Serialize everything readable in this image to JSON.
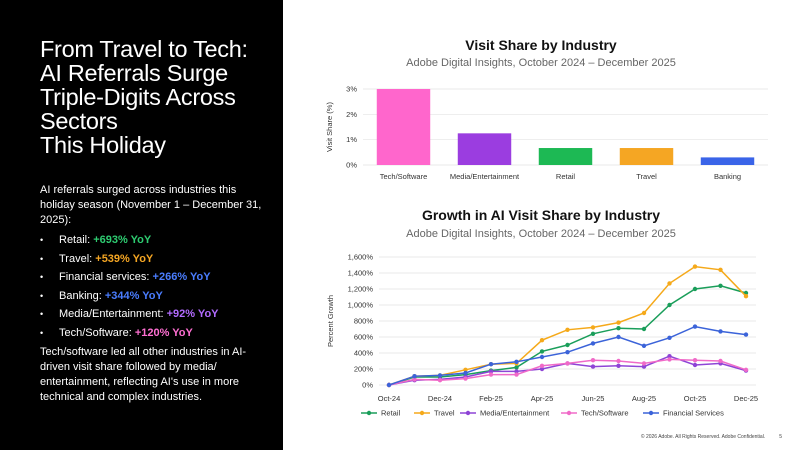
{
  "left": {
    "title_lines": [
      "From Travel to Tech:",
      "AI Referrals Surge",
      "Triple-Digits Across",
      "Sectors",
      "This Holiday"
    ],
    "intro": "AI referrals surged across industries this holiday season (November 1 – December 31, 2025):",
    "bullets": [
      {
        "label": "Retail:",
        "value": "+693% YoY",
        "color": "#2ecc71"
      },
      {
        "label": "Travel: ",
        "value": "+539% YoY",
        "color": "#f5a623"
      },
      {
        "label": "Financial services:",
        "value": "+266% YoY",
        "color": "#4a7dff"
      },
      {
        "label": "Banking:",
        "value": "+344% YoY",
        "color": "#4a7dff"
      },
      {
        "label": "Media/Entertainment:",
        "value": "+92% YoY",
        "color": "#b26bff"
      },
      {
        "label": "Tech/Software:",
        "value": "+120% YoY",
        "color": "#ff6fd2"
      }
    ],
    "closing": "Tech/software led all other industries in AI-driven visit share followed by media/ entertainment, reflecting AI's use in more technical and complex industries."
  },
  "footer": {
    "text": "© 2026 Adobe. All Rights Reserved. Adobe Confidential.",
    "page": "5"
  },
  "chart_data": [
    {
      "type": "bar",
      "title": "Visit Share by Industry",
      "subtitle": "Adobe Digital Insights, October 2024 – December 2025",
      "ylabel": "Visit Share (%)",
      "xlabel": "",
      "categories": [
        "Tech/Software",
        "Media/Entertainment",
        "Retail",
        "Travel",
        "Banking"
      ],
      "values": [
        3.0,
        1.25,
        0.67,
        0.67,
        0.3
      ],
      "colors": [
        "#ff66cc",
        "#9b3de0",
        "#1db954",
        "#f5a623",
        "#3a64e8"
      ],
      "ylim": [
        0,
        3
      ],
      "yticks": [
        0,
        1,
        2,
        3
      ],
      "ytick_labels": [
        "0%",
        "1%",
        "2%",
        "3%"
      ],
      "grid": "horizontal"
    },
    {
      "type": "line",
      "title": "Growth in AI Visit Share by Industry",
      "subtitle": "Adobe Digital Insights, October 2024 – December 2025",
      "ylabel": "Percent Growth",
      "xlabel": "",
      "x": [
        "Oct-24",
        "Nov-24",
        "Dec-24",
        "Jan-25",
        "Feb-25",
        "Mar-25",
        "Apr-25",
        "May-25",
        "Jun-25",
        "Jul-25",
        "Aug-25",
        "Sep-25",
        "Oct-25",
        "Nov-25",
        "Dec-25"
      ],
      "xtick_labels": [
        "Oct-24",
        "Dec-24",
        "Feb-25",
        "Apr-25",
        "Jun-25",
        "Aug-25",
        "Oct-25",
        "Dec-25"
      ],
      "ylim": [
        0,
        1600
      ],
      "yticks": [
        0,
        200,
        400,
        600,
        800,
        1000,
        1200,
        1400,
        1600
      ],
      "ytick_labels": [
        "0%",
        "200%",
        "400%",
        "600%",
        "800%",
        "1,000%",
        "1,200%",
        "1,400%",
        "1,600%"
      ],
      "grid": "horizontal",
      "legend": "bottom",
      "series": [
        {
          "name": "Retail",
          "color": "#1a9e5a",
          "values": [
            0,
            100,
            100,
            130,
            180,
            220,
            420,
            500,
            640,
            710,
            700,
            1000,
            1200,
            1240,
            1150
          ]
        },
        {
          "name": "Travel",
          "color": "#f5a91a",
          "values": [
            0,
            110,
            120,
            190,
            260,
            270,
            560,
            690,
            720,
            780,
            900,
            1270,
            1480,
            1440,
            1110
          ]
        },
        {
          "name": "Media/Entertainment",
          "color": "#8e44d6",
          "values": [
            0,
            60,
            70,
            100,
            170,
            170,
            200,
            270,
            230,
            240,
            230,
            360,
            250,
            270,
            180
          ]
        },
        {
          "name": "Tech/Software",
          "color": "#f06ac8",
          "values": [
            0,
            70,
            60,
            80,
            130,
            130,
            240,
            270,
            310,
            300,
            270,
            320,
            310,
            300,
            190
          ]
        },
        {
          "name": "Financial Services",
          "color": "#3b63d9",
          "values": [
            0,
            110,
            120,
            150,
            260,
            290,
            350,
            410,
            520,
            600,
            490,
            590,
            730,
            670,
            630
          ]
        }
      ]
    }
  ]
}
